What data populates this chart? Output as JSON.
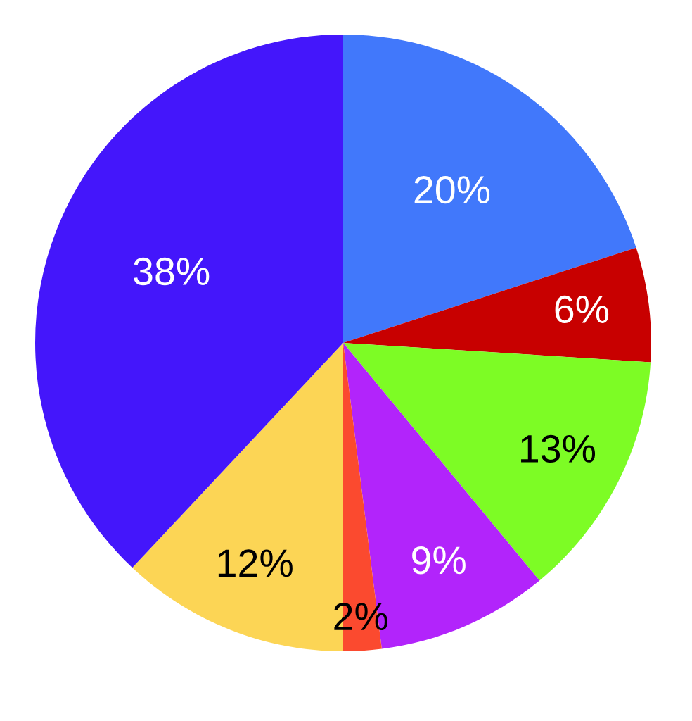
{
  "chart_data": {
    "type": "pie",
    "categories": [
      null,
      null,
      null,
      null,
      null,
      null,
      null
    ],
    "values": [
      20,
      6,
      13,
      9,
      2,
      12,
      38
    ],
    "colors": [
      "#4178fb",
      "#c80000",
      "#7dfc25",
      "#b224fb",
      "#fb4a2f",
      "#fcd555",
      "#4416fb"
    ],
    "value_labels": [
      "20%",
      "6%",
      "13%",
      "9%",
      "2%",
      "12%",
      "38%"
    ]
  }
}
